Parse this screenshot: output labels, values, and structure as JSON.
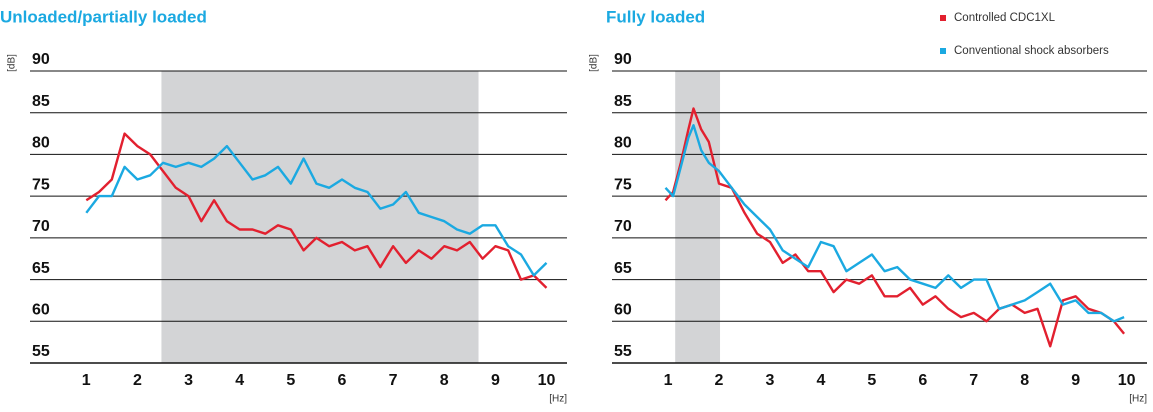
{
  "chart_data": [
    {
      "type": "line",
      "title": "Unloaded/partially loaded",
      "ylabel": "[dB]",
      "xlabel": "[Hz]",
      "xlim": [
        -0.1,
        10.4
      ],
      "ylim": [
        55,
        90
      ],
      "xticks": [
        1,
        2,
        3,
        4,
        5,
        6,
        7,
        8,
        9,
        10
      ],
      "yticks": [
        55,
        60,
        65,
        70,
        75,
        80,
        85,
        90
      ],
      "grid": true,
      "highlight": [
        2.47,
        8.67
      ],
      "highlight_color": "#d3d4d6",
      "series": [
        {
          "color": "#e2202f",
          "x": [
            1,
            1.25,
            1.5,
            1.75,
            2,
            2.25,
            2.5,
            2.75,
            3,
            3.25,
            3.5,
            3.75,
            4,
            4.25,
            4.5,
            4.75,
            5,
            5.25,
            5.5,
            5.75,
            6,
            6.25,
            6.5,
            6.75,
            7,
            7.25,
            7.5,
            7.75,
            8,
            8.25,
            8.5,
            8.75,
            9,
            9.25,
            9.5,
            9.75,
            10
          ],
          "values": [
            74.5,
            75.5,
            77,
            82.5,
            81,
            80,
            78,
            76,
            75,
            72,
            74.5,
            72,
            71,
            71,
            70.5,
            71.5,
            71,
            68.5,
            70,
            69,
            69.5,
            68.5,
            69,
            66.5,
            69,
            67,
            68.5,
            67.5,
            69,
            68.5,
            69.5,
            67.5,
            69,
            68.5,
            65,
            65.5,
            64
          ]
        },
        {
          "color": "#1ba9e1",
          "x": [
            1,
            1.25,
            1.5,
            1.75,
            2,
            2.25,
            2.5,
            2.75,
            3,
            3.25,
            3.5,
            3.75,
            4,
            4.25,
            4.5,
            4.75,
            5,
            5.25,
            5.5,
            5.75,
            6,
            6.25,
            6.5,
            6.75,
            7,
            7.25,
            7.5,
            7.75,
            8,
            8.25,
            8.5,
            8.75,
            9,
            9.25,
            9.5,
            9.75,
            10
          ],
          "values": [
            73,
            75,
            75,
            78.5,
            77,
            77.5,
            79,
            78.5,
            79,
            78.5,
            79.5,
            81,
            79,
            77,
            77.5,
            78.5,
            76.5,
            79.5,
            76.5,
            76,
            77,
            76,
            75.5,
            73.5,
            74,
            75.5,
            73,
            72.5,
            72,
            71,
            70.5,
            71.5,
            71.5,
            69,
            68,
            65.5,
            67
          ]
        }
      ]
    },
    {
      "type": "line",
      "title": "Fully loaded",
      "ylabel": "[dB]",
      "xlabel": "[Hz]",
      "xlim": [
        -0.1,
        10.4
      ],
      "ylim": [
        55,
        90
      ],
      "xticks": [
        1,
        2,
        3,
        4,
        5,
        6,
        7,
        8,
        9,
        10
      ],
      "yticks": [
        55,
        60,
        65,
        70,
        75,
        80,
        85,
        90
      ],
      "grid": true,
      "highlight": [
        1.14,
        2.02
      ],
      "highlight_color": "#d3d4d6",
      "legend": "upper right",
      "series": [
        {
          "name": "Controlled CDC1XL",
          "color": "#e2202f",
          "x": [
            0.95,
            1.1,
            1.25,
            1.4,
            1.5,
            1.65,
            1.8,
            2,
            2.25,
            2.5,
            2.75,
            3,
            3.25,
            3.5,
            3.75,
            4,
            4.25,
            4.5,
            4.75,
            5,
            5.25,
            5.5,
            5.75,
            6,
            6.25,
            6.5,
            6.75,
            7,
            7.25,
            7.5,
            7.75,
            8,
            8.25,
            8.5,
            8.75,
            9,
            9.25,
            9.5,
            9.75,
            9.95
          ],
          "values": [
            74.5,
            75.5,
            79,
            83,
            85.5,
            83,
            81.5,
            76.5,
            76,
            73,
            70.5,
            69.5,
            67,
            68,
            66,
            66,
            63.5,
            65,
            64.5,
            65.5,
            63,
            63,
            64,
            62,
            63,
            61.5,
            60.5,
            61,
            60,
            61.5,
            62,
            61,
            61.5,
            57,
            62.5,
            63,
            61.5,
            61,
            60,
            58.5
          ]
        },
        {
          "name": "Conventional shock absorbers",
          "color": "#1ba9e1",
          "x": [
            0.95,
            1.1,
            1.25,
            1.4,
            1.5,
            1.65,
            1.8,
            2,
            2.25,
            2.5,
            2.75,
            3,
            3.25,
            3.5,
            3.75,
            4,
            4.25,
            4.5,
            4.75,
            5,
            5.25,
            5.5,
            5.75,
            6,
            6.25,
            6.5,
            6.75,
            7,
            7.25,
            7.5,
            7.75,
            8,
            8.25,
            8.5,
            8.75,
            9,
            9.25,
            9.5,
            9.75,
            9.95
          ],
          "values": [
            76,
            75,
            78.5,
            82,
            83.5,
            80.5,
            79,
            78,
            76,
            74,
            72.5,
            71,
            68.5,
            67.5,
            66.5,
            69.5,
            69,
            66,
            67,
            68,
            66,
            66.5,
            65,
            64.5,
            64,
            65.5,
            64,
            65,
            65,
            61.5,
            62,
            62.5,
            63.5,
            64.5,
            62,
            62.5,
            61,
            61,
            60,
            60.5
          ]
        }
      ]
    }
  ]
}
